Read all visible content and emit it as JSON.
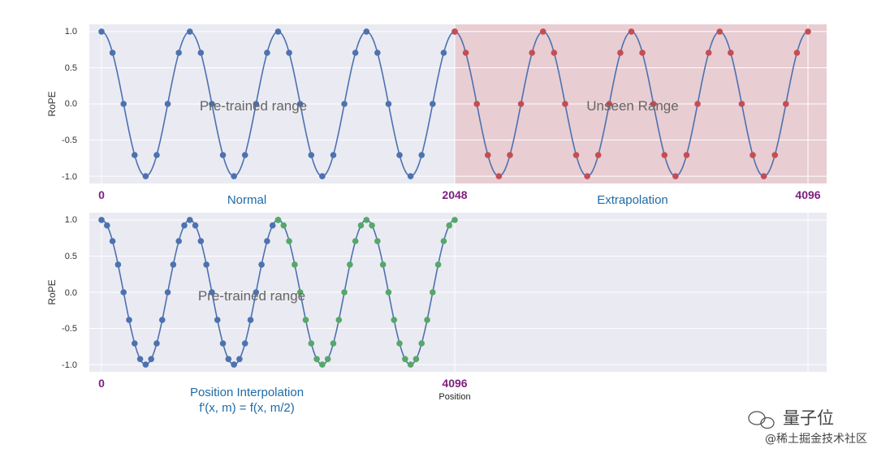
{
  "chart_data": [
    {
      "type": "line",
      "ylabel": "RoPE",
      "ylim": [
        -1.1,
        1.1
      ],
      "yticks": [
        "1.0",
        "0.5",
        "0.0",
        "-0.5",
        "-1.0"
      ],
      "grid": true,
      "x_markers": [
        "0",
        "2048",
        "4096"
      ],
      "captions": [
        "Normal",
        "Extrapolation"
      ],
      "annotations": [
        "Pre-trained range",
        "Unseen Range"
      ],
      "series": [
        {
          "type": "curve",
          "function": "cos",
          "x_range": [
            0,
            4096
          ],
          "period": 512,
          "color": "#4c72b0"
        },
        {
          "type": "points",
          "x_range": [
            0,
            2048
          ],
          "step": 64,
          "color": "#4c72b0"
        },
        {
          "type": "points",
          "x_range": [
            2048,
            4096
          ],
          "step": 64,
          "color": "#c44e52"
        }
      ],
      "shaded_region": {
        "x_range": [
          2048,
          4096
        ],
        "color": "#c44e52"
      }
    },
    {
      "type": "line",
      "ylabel": "RoPE",
      "xlabel": "Position",
      "ylim": [
        -1.1,
        1.1
      ],
      "yticks": [
        "1.0",
        "0.5",
        "0.0",
        "-0.5",
        "-1.0"
      ],
      "grid": true,
      "x_markers": [
        "0",
        "4096"
      ],
      "captions": [
        "Position Interpolation",
        "f'(x, m) = f(x, m/2)"
      ],
      "annotations": [
        "Pre-trained range"
      ],
      "series": [
        {
          "type": "curve",
          "function": "cos",
          "x_range": [
            0,
            2048
          ],
          "period": 512,
          "color": "#4c72b0"
        },
        {
          "type": "points",
          "x_range": [
            0,
            1024
          ],
          "step": 32,
          "color": "#4c72b0"
        },
        {
          "type": "points",
          "x_range": [
            1024,
            2048
          ],
          "step": 32,
          "color": "#55a868"
        }
      ]
    }
  ],
  "watermark": {
    "brand": "量子位",
    "credit": "@稀土掘金技术社区"
  },
  "colors": {
    "panel_bg": "#eaeaf2",
    "grid": "#ffffff",
    "curve": "#4c72b0",
    "points_blue": "#4c72b0",
    "points_red": "#c44e52",
    "points_green": "#55a868",
    "unseen_shade": "#e8cdd3",
    "position_label": "#7b1f7d",
    "caption": "#1f6aa5"
  }
}
